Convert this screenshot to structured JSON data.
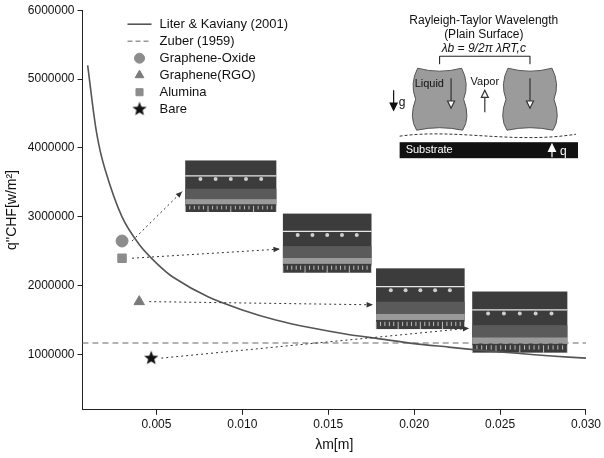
{
  "chart_data": {
    "type": "scatter",
    "x_label": "λm[m]",
    "y_label": "q''CHF[w/m²]",
    "xlim": [
      0.0007,
      0.03
    ],
    "xticks": [
      0.005,
      {
        "value": 0.01,
        "label": "0.010"
      },
      0.015,
      {
        "value": 0.02,
        "label": "0.020"
      },
      0.025,
      {
        "value": 0.03,
        "label": "0.030"
      }
    ],
    "ylim": [
      200000,
      6000000
    ],
    "yticks": [
      1000000,
      2000000,
      3000000,
      4000000,
      5000000,
      6000000
    ],
    "grid": false,
    "legend": "upper left",
    "series": [
      {
        "name": "Liter & Kaviany (2001)",
        "type": "line",
        "line_style": "solid",
        "color": "#555555",
        "x": [
          0.001,
          0.0015,
          0.002,
          0.003,
          0.004,
          0.005,
          0.006,
          0.008,
          0.01,
          0.012,
          0.014,
          0.016,
          0.018,
          0.02,
          0.022,
          0.024,
          0.026,
          0.028,
          0.03
        ],
        "values": [
          5200000,
          4250000,
          3700000,
          3000000,
          2600000,
          2330000,
          2120000,
          1840000,
          1650000,
          1500000,
          1390000,
          1300000,
          1230000,
          1160000,
          1110000,
          1060000,
          1020000,
          980000,
          950000
        ]
      },
      {
        "name": "Zuber (1959)",
        "type": "line",
        "line_style": "dashed",
        "color": "#9a9a9a",
        "x": [
          0.0007,
          0.03
        ],
        "values": [
          1170000,
          1170000
        ]
      },
      {
        "name": "Graphene-Oxide",
        "type": "scatter",
        "marker": "circle",
        "color": "#8c8c8c",
        "x": [
          0.003
        ],
        "values": [
          2650000
        ]
      },
      {
        "name": "Graphene(RGO)",
        "type": "scatter",
        "marker": "triangle",
        "color": "#7a7a7a",
        "x": [
          0.004
        ],
        "values": [
          1770000
        ]
      },
      {
        "name": "Alumina",
        "type": "scatter",
        "marker": "square",
        "color": "#8c8c8c",
        "x": [
          0.003
        ],
        "values": [
          2400000
        ]
      },
      {
        "name": "Bare",
        "type": "scatter",
        "marker": "star",
        "color": "#111111",
        "x": [
          0.0047
        ],
        "values": [
          950000
        ]
      }
    ],
    "annotations": {
      "diagram_title": "Rayleigh-Taylor Wavelength",
      "diagram_subtitle": "(Plain Surface)",
      "formula": "λb = 9/2π λRT,c",
      "liquid": "Liquid",
      "vapor": "Vapor",
      "gravity": "g",
      "substrate": "Substrate",
      "heat": "q"
    }
  }
}
